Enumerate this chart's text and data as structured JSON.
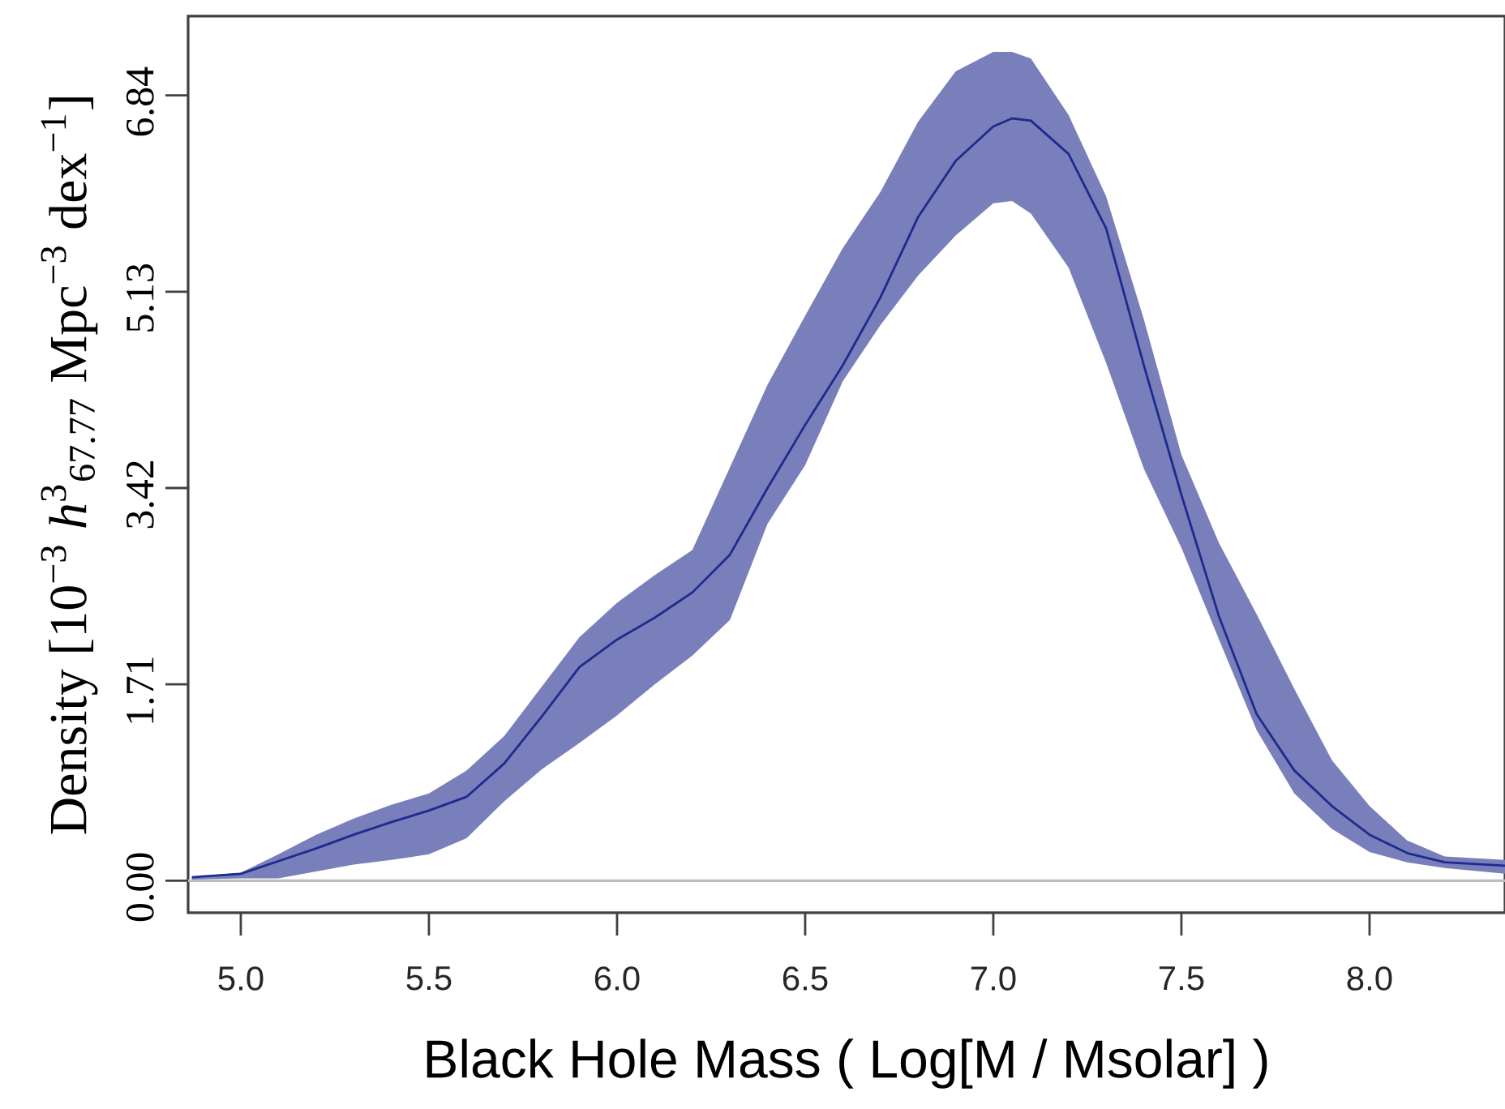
{
  "chart_data": {
    "type": "line",
    "xlabel": "Black Hole Mass ( Log[M / Msolar] )",
    "ylabel": "Density [10$^{−3}$ *h*$^{3}$$_{67.77}$ Mpc$^{−3}$ dex$^{−1}$]",
    "xlim": [
      4.86,
      8.36
    ],
    "ylim": [
      -0.28,
      7.53
    ],
    "xticks": [
      {
        "value": 5,
        "label": "5.0"
      },
      {
        "value": 5.5,
        "label": "5.5"
      },
      {
        "value": 6,
        "label": "6.0"
      },
      {
        "value": 6.5,
        "label": "6.5"
      },
      {
        "value": 7,
        "label": "7.0"
      },
      {
        "value": 7.5,
        "label": "7.5"
      },
      {
        "value": 8,
        "label": "8.0"
      }
    ],
    "yticks": [
      {
        "value": 0,
        "label": "0.00"
      },
      1.71,
      3.42,
      5.13,
      6.84
    ],
    "ref_lines": [
      {
        "axis": "y",
        "value": 0,
        "color": "#bebebe"
      }
    ],
    "series": [
      {
        "color": "#1f2a8e",
        "x": [
          4.87,
          5.0,
          5.1,
          5.2,
          5.3,
          5.4,
          5.5,
          5.6,
          5.7,
          5.8,
          5.9,
          6.0,
          6.1,
          6.2,
          6.3,
          6.4,
          6.5,
          6.6,
          6.7,
          6.8,
          6.9,
          7.0,
          7.05,
          7.1,
          7.2,
          7.3,
          7.4,
          7.5,
          7.6,
          7.7,
          7.8,
          7.9,
          8.0,
          8.1,
          8.2,
          8.36
        ],
        "values": [
          0.03,
          0.06,
          0.17,
          0.28,
          0.4,
          0.51,
          0.61,
          0.73,
          1.02,
          1.43,
          1.86,
          2.1,
          2.29,
          2.51,
          2.84,
          3.42,
          3.97,
          4.49,
          5.08,
          5.78,
          6.27,
          6.57,
          6.64,
          6.62,
          6.33,
          5.68,
          4.49,
          3.36,
          2.3,
          1.45,
          0.96,
          0.65,
          0.4,
          0.24,
          0.16,
          0.13
        ],
        "upper": [
          0.03,
          0.07,
          0.23,
          0.4,
          0.54,
          0.66,
          0.76,
          0.96,
          1.26,
          1.69,
          2.12,
          2.42,
          2.66,
          2.88,
          3.6,
          4.32,
          4.92,
          5.51,
          6.0,
          6.61,
          7.05,
          7.22,
          7.22,
          7.16,
          6.67,
          5.96,
          4.89,
          3.71,
          2.94,
          2.32,
          1.67,
          1.05,
          0.65,
          0.35,
          0.21,
          0.18
        ],
        "lower": [
          0.01,
          0.02,
          0.02,
          0.08,
          0.14,
          0.18,
          0.23,
          0.37,
          0.69,
          0.97,
          1.2,
          1.44,
          1.71,
          1.96,
          2.27,
          3.11,
          3.62,
          4.35,
          4.84,
          5.27,
          5.62,
          5.9,
          5.92,
          5.81,
          5.34,
          4.51,
          3.59,
          2.9,
          2.1,
          1.31,
          0.76,
          0.45,
          0.25,
          0.16,
          0.11,
          0.06
        ]
      }
    ]
  }
}
